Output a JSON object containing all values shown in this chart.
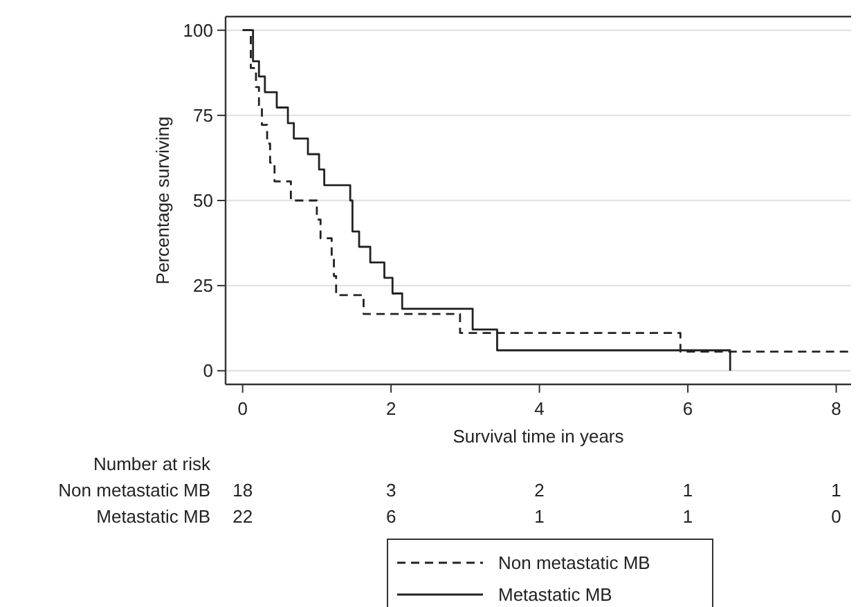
{
  "chart_data": {
    "type": "step",
    "xlabel": "Survival time in years",
    "ylabel": "Percentage surviving",
    "xlim": [
      -0.23,
      8.2
    ],
    "ylim": [
      -4,
      104
    ],
    "xticks": [
      0,
      2,
      4,
      6,
      8
    ],
    "yticks": [
      0,
      25,
      50,
      75,
      100
    ],
    "grid": "y",
    "legend": "bottom",
    "marker": "none",
    "series": [
      {
        "name": "Non metastatic MB",
        "color": "#222222",
        "line_style": "dashed",
        "x": [
          0,
          0.11,
          0.18,
          0.22,
          0.26,
          0.33,
          0.37,
          0.43,
          0.65,
          1.0,
          1.05,
          1.2,
          1.23,
          1.26,
          1.63,
          2.93,
          5.9,
          8.16
        ],
        "values": [
          100,
          88.9,
          83.3,
          77.8,
          72.2,
          66.7,
          61.1,
          55.6,
          50,
          44.4,
          38.9,
          33.3,
          27.8,
          22.2,
          16.7,
          11.1,
          5.6,
          5.6
        ]
      },
      {
        "name": "Metastatic MB",
        "color": "#222222",
        "line_style": "solid",
        "x": [
          0,
          0.14,
          0.22,
          0.3,
          0.46,
          0.61,
          0.69,
          0.88,
          1.03,
          1.1,
          1.45,
          1.48,
          1.57,
          1.72,
          1.91,
          2.02,
          2.15,
          3.1,
          3.43,
          6.57
        ],
        "values": [
          100,
          90.9,
          86.4,
          81.8,
          77.3,
          72.7,
          68.2,
          63.6,
          59.1,
          54.5,
          50,
          40.9,
          36.4,
          31.8,
          27.3,
          22.7,
          18.2,
          12.1,
          6,
          0
        ]
      }
    ],
    "annotations": [
      "Number at risk",
      "Non metastatic MB",
      "18",
      "3",
      "2",
      "1",
      "1",
      "Metastatic MB",
      "22",
      "6",
      "1",
      "1",
      "0"
    ]
  }
}
